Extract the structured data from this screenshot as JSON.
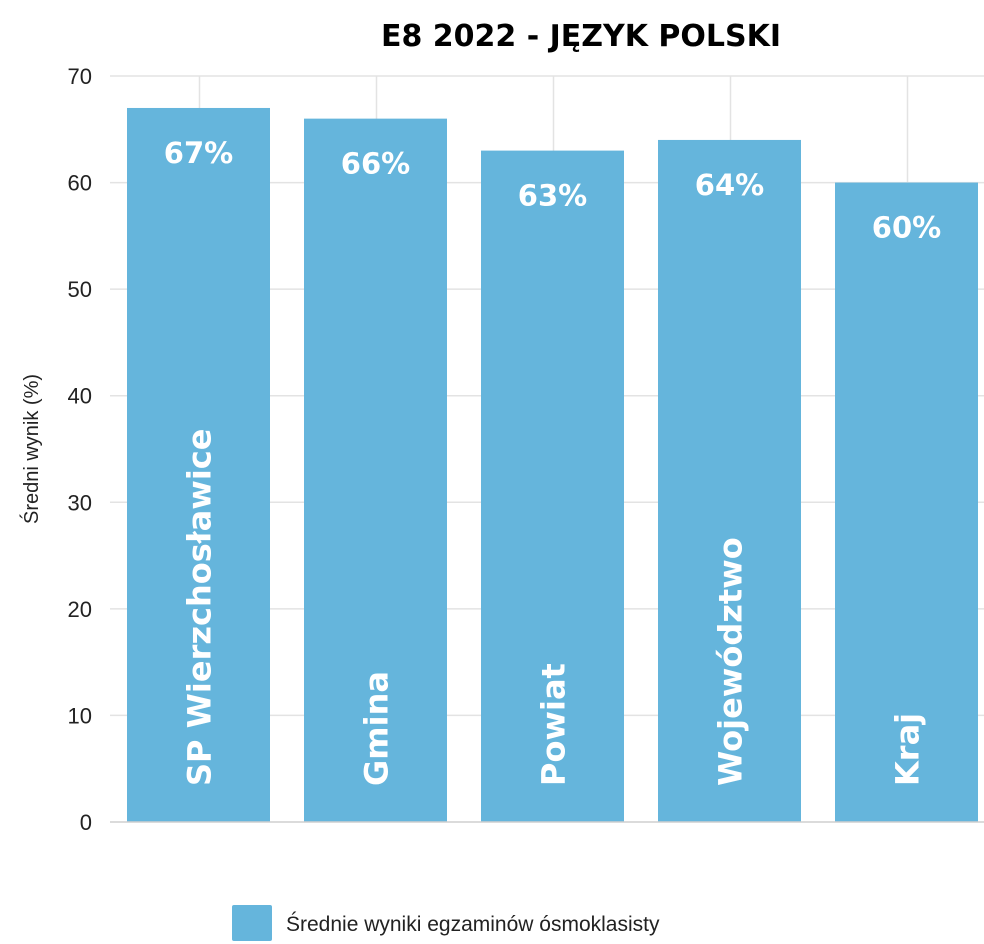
{
  "chart_data": {
    "type": "bar",
    "title": "E8 2022 - JĘZYK POLSKI",
    "ylabel": "Średni wynik (%)",
    "xlabel": "",
    "ylim": [
      0,
      70
    ],
    "yticks": [
      0,
      10,
      20,
      30,
      40,
      50,
      60,
      70
    ],
    "grid": true,
    "legend_position": "bottom",
    "categories": [
      "SP Wierzchosławice",
      "Gmina",
      "Powiat",
      "Województwo",
      "Kraj"
    ],
    "series": [
      {
        "name": "Średnie wyniki egzaminów ósmoklasisty",
        "values": [
          67,
          66,
          63,
          64,
          60
        ],
        "labels": [
          "67%",
          "66%",
          "63%",
          "64%",
          "60%"
        ],
        "color": "#65b5dc"
      }
    ]
  }
}
